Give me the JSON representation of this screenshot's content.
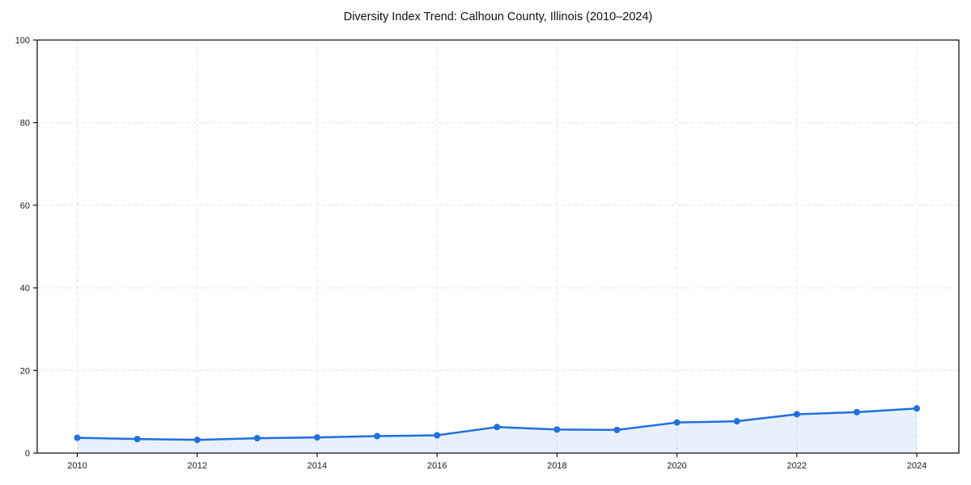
{
  "chart_data": {
    "type": "line",
    "title": "Diversity Index Trend: Calhoun County, Illinois (2010–2024)",
    "series_name": "Diversity Index",
    "x": [
      2010,
      2011,
      2012,
      2013,
      2014,
      2015,
      2016,
      2017,
      2018,
      2019,
      2020,
      2021,
      2022,
      2023,
      2024
    ],
    "values": [
      3.7,
      3.4,
      3.2,
      3.6,
      3.8,
      4.1,
      4.3,
      6.3,
      5.7,
      5.6,
      7.4,
      7.7,
      9.4,
      9.9,
      10.8
    ],
    "xlabel": "",
    "ylabel": "",
    "xlim": [
      2010,
      2024
    ],
    "ylim": [
      0,
      100
    ],
    "x_ticks": [
      2010,
      2012,
      2014,
      2016,
      2018,
      2020,
      2022,
      2024
    ],
    "x_tick_labels": [
      "2010",
      "2012",
      "2014",
      "2016",
      "2018",
      "2020",
      "2022",
      "2024"
    ],
    "y_ticks": [
      0,
      20,
      40,
      60,
      80,
      100
    ],
    "y_tick_labels": [
      "0",
      "20",
      "40",
      "60",
      "80",
      "100"
    ],
    "grid": "dashed-at-labeled-ticks",
    "legend_position": "none",
    "marker": "circle",
    "area_fill": true,
    "colors": {
      "line": "#1f6fe0",
      "marker": "#1f6fe0",
      "fill": "#1f6fe0",
      "fill_opacity": 0.1,
      "grid": "#e3e3e3",
      "spine": "#151515",
      "tick_label": "#1a1a1a",
      "title": "#111111",
      "background": "#ffffff"
    }
  }
}
